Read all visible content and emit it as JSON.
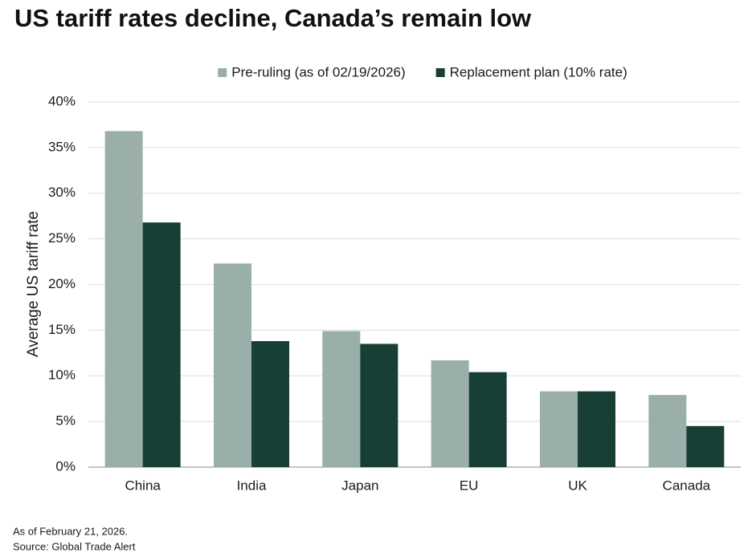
{
  "chart_data": {
    "type": "bar",
    "title": "US tariff rates decline, Canada’s remain low",
    "y_label": "Average US tariff rate",
    "categories": [
      "China",
      "India",
      "Japan",
      "EU",
      "UK",
      "Canada"
    ],
    "series": [
      {
        "name": "Pre-ruling (as of 02/19/2026)",
        "color": "#9aaeaa",
        "values": [
          36.8,
          22.3,
          14.9,
          11.7,
          8.3,
          7.9
        ]
      },
      {
        "name": "Replacement plan (10% rate)",
        "color": "#173f36",
        "values": [
          26.8,
          13.8,
          13.5,
          10.4,
          8.3,
          4.5
        ]
      }
    ],
    "ylim": [
      0,
      40
    ],
    "yticks": [
      {
        "value": 0,
        "label": "0%"
      },
      {
        "value": 5,
        "label": "5%"
      },
      {
        "value": 10,
        "label": "10%"
      },
      {
        "value": 15,
        "label": "15%"
      },
      {
        "value": 20,
        "label": "20%"
      },
      {
        "value": 25,
        "label": "25%"
      },
      {
        "value": 30,
        "label": "30%"
      },
      {
        "value": 35,
        "label": "35%"
      },
      {
        "value": 40,
        "label": "40%"
      }
    ],
    "grid": true,
    "legend": "top",
    "notes": [
      "As of February 21, 2026.",
      "Source: Global Trade Alert"
    ]
  }
}
